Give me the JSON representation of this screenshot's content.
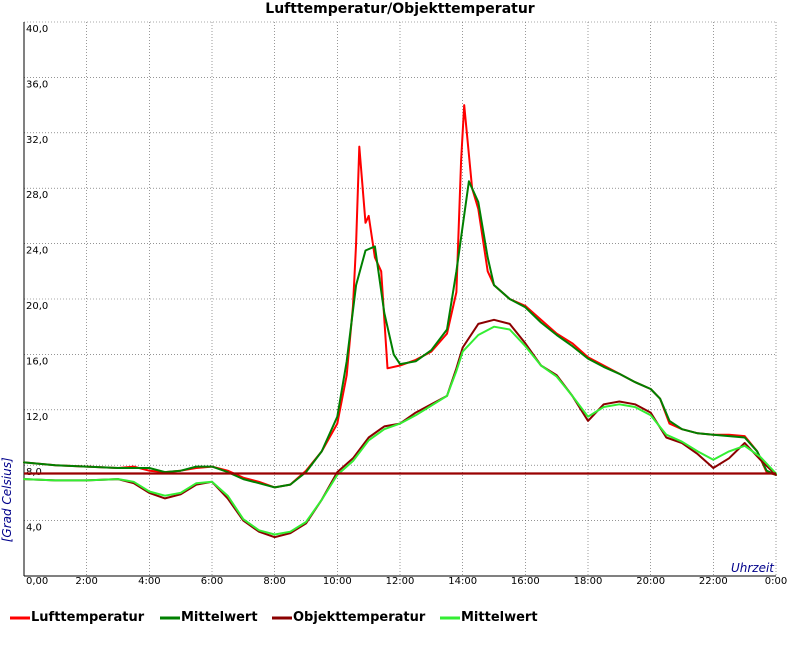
{
  "chart_data": {
    "type": "line",
    "title": "Lufttemperatur/Objekttemperatur",
    "ylabel": "[Grad Celsius]",
    "xlabel": "Uhrzeit",
    "ylim": [
      0,
      40
    ],
    "xlim": [
      0,
      24
    ],
    "yticks": [
      "4,0",
      "8,0",
      "12,0",
      "16,0",
      "20,0",
      "24,0",
      "28,0",
      "32,0",
      "36,0",
      "40,0"
    ],
    "ytick_values": [
      4,
      8,
      12,
      16,
      20,
      24,
      28,
      32,
      36,
      40
    ],
    "xticks": [
      "0,00",
      "2:00",
      "4:00",
      "6:00",
      "8:00",
      "10:00",
      "12:00",
      "14:00",
      "16:00",
      "18:00",
      "20:00",
      "22:00",
      "0:00"
    ],
    "xtick_values": [
      0,
      2,
      4,
      6,
      8,
      10,
      12,
      14,
      16,
      18,
      20,
      22,
      24
    ],
    "grid": true,
    "legend_position": "bottom",
    "reference_line": {
      "y": 7.4,
      "color": "#990000"
    },
    "series": [
      {
        "name": "Lufttemperatur",
        "color": "#ff0000",
        "x": [
          0,
          1,
          2,
          3,
          3.5,
          4,
          4.5,
          5,
          5.5,
          6,
          6.5,
          7,
          7.5,
          8,
          8.5,
          9,
          9.5,
          10,
          10.3,
          10.5,
          10.6,
          10.7,
          10.9,
          11,
          11.2,
          11.4,
          11.6,
          12,
          12.5,
          13,
          13.5,
          13.8,
          13.95,
          14.05,
          14.3,
          14.5,
          14.8,
          15,
          15.5,
          16,
          16.5,
          17,
          17.5,
          18,
          18.5,
          19,
          19.5,
          20,
          20.3,
          20.6,
          21,
          21.5,
          22,
          22.5,
          23,
          23.4,
          23.7,
          24
        ],
        "y": [
          8.2,
          8.0,
          7.9,
          7.8,
          7.9,
          7.6,
          7.5,
          7.6,
          7.8,
          7.9,
          7.6,
          7.1,
          6.8,
          6.4,
          6.6,
          7.6,
          9.0,
          11.0,
          14.5,
          19.5,
          24.0,
          31.0,
          25.5,
          26.0,
          23.0,
          22.0,
          15.0,
          15.2,
          15.6,
          16.2,
          17.5,
          20.5,
          30.0,
          34.0,
          28.0,
          26.5,
          22.0,
          21.0,
          20.0,
          19.5,
          18.5,
          17.5,
          16.8,
          15.8,
          15.2,
          14.6,
          14.0,
          13.5,
          12.8,
          11.0,
          10.6,
          10.3,
          10.2,
          10.2,
          10.1,
          9.0,
          7.5,
          7.3
        ]
      },
      {
        "name": "Mittelwert",
        "color": "#008000",
        "x": [
          0,
          1,
          2,
          3,
          4,
          4.5,
          5,
          5.5,
          6,
          6.5,
          7,
          7.5,
          8,
          8.5,
          9,
          9.5,
          10,
          10.3,
          10.6,
          10.9,
          11.2,
          11.5,
          11.8,
          12,
          12.5,
          13,
          13.5,
          13.8,
          14.2,
          14.5,
          14.8,
          15,
          15.5,
          16,
          16.5,
          17,
          17.5,
          18,
          18.5,
          19,
          19.5,
          20,
          20.3,
          20.6,
          21,
          21.5,
          22,
          22.5,
          23,
          23.4,
          23.7,
          24
        ],
        "y": [
          8.2,
          8.0,
          7.9,
          7.8,
          7.8,
          7.5,
          7.6,
          7.9,
          7.9,
          7.5,
          7.0,
          6.7,
          6.4,
          6.6,
          7.5,
          9.0,
          11.5,
          15.5,
          21.0,
          23.5,
          23.8,
          19.0,
          16.0,
          15.3,
          15.5,
          16.3,
          17.8,
          22.0,
          28.5,
          27.0,
          23.0,
          21.0,
          20.0,
          19.4,
          18.3,
          17.4,
          16.6,
          15.7,
          15.1,
          14.6,
          14.0,
          13.5,
          12.8,
          11.2,
          10.6,
          10.3,
          10.2,
          10.1,
          10.0,
          9.0,
          7.6,
          7.3
        ]
      },
      {
        "name": "Objekttemperatur",
        "color": "#8b0000",
        "x": [
          0,
          1,
          2,
          3,
          3.5,
          4,
          4.5,
          5,
          5.5,
          6,
          6.5,
          7,
          7.5,
          8,
          8.5,
          9,
          9.5,
          10,
          10.5,
          11,
          11.5,
          12,
          12.5,
          13,
          13.5,
          13.8,
          14,
          14.5,
          15,
          15.5,
          16,
          16.5,
          17,
          17.5,
          18,
          18.5,
          19,
          19.5,
          20,
          20.5,
          21,
          21.5,
          22,
          22.5,
          23,
          23.5,
          24
        ],
        "y": [
          7.0,
          6.9,
          6.9,
          7.0,
          6.7,
          6.0,
          5.6,
          5.9,
          6.6,
          6.8,
          5.6,
          4.0,
          3.2,
          2.8,
          3.1,
          3.8,
          5.5,
          7.5,
          8.5,
          10.0,
          10.8,
          11.0,
          11.8,
          12.4,
          13.0,
          15.0,
          16.5,
          18.2,
          18.5,
          18.2,
          16.8,
          15.2,
          14.5,
          13.0,
          11.2,
          12.4,
          12.6,
          12.4,
          11.8,
          10.0,
          9.6,
          8.8,
          7.8,
          8.5,
          9.6,
          8.4,
          7.3
        ]
      },
      {
        "name": "Mittelwert",
        "color": "#33ee33",
        "x": [
          0,
          1,
          2,
          3,
          3.5,
          4,
          4.5,
          5,
          5.5,
          6,
          6.5,
          7,
          7.5,
          8,
          8.5,
          9,
          9.5,
          10,
          10.5,
          11,
          11.5,
          12,
          12.5,
          13,
          13.5,
          13.8,
          14,
          14.5,
          15,
          15.5,
          16,
          16.5,
          17,
          17.5,
          18,
          18.5,
          19,
          19.5,
          20,
          20.5,
          21,
          21.5,
          22,
          22.5,
          23,
          23.5,
          24
        ],
        "y": [
          7.0,
          6.9,
          6.9,
          7.0,
          6.8,
          6.1,
          5.8,
          6.0,
          6.7,
          6.8,
          5.8,
          4.1,
          3.3,
          3.0,
          3.2,
          3.9,
          5.5,
          7.3,
          8.3,
          9.8,
          10.6,
          11.0,
          11.6,
          12.3,
          13.0,
          14.8,
          16.2,
          17.4,
          18.0,
          17.8,
          16.6,
          15.2,
          14.4,
          13.0,
          11.5,
          12.2,
          12.4,
          12.2,
          11.6,
          10.2,
          9.7,
          9.0,
          8.4,
          9.0,
          9.4,
          8.6,
          7.4
        ]
      }
    ]
  }
}
